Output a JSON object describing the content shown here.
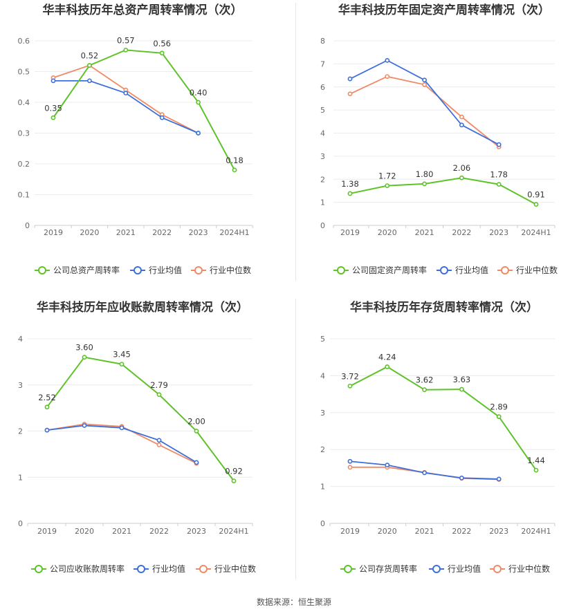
{
  "colors": {
    "company": "#5ec229",
    "avg": "#3d6fd9",
    "median": "#f08a64"
  },
  "source": "数据来源：恒生聚源",
  "chart_data": [
    {
      "type": "line",
      "title": "华丰科技历年总资产周转率情况（次）",
      "categories": [
        "2019",
        "2020",
        "2021",
        "2022",
        "2023",
        "2024H1"
      ],
      "ylim": [
        0,
        0.6
      ],
      "yticks": [
        "0",
        "0.1",
        "0.2",
        "0.3",
        "0.4",
        "0.5",
        "0.6"
      ],
      "series": [
        {
          "name": "公司总资产周转率",
          "values": [
            0.35,
            0.52,
            0.57,
            0.56,
            0.4,
            0.18
          ],
          "labels": [
            "0.35",
            "0.52",
            "0.57",
            "0.56",
            "0.40",
            "0.18"
          ]
        },
        {
          "name": "行业均值",
          "values": [
            0.47,
            0.47,
            0.43,
            0.35,
            0.3,
            null
          ]
        },
        {
          "name": "行业中位数",
          "values": [
            0.48,
            0.52,
            0.44,
            0.36,
            0.3,
            null
          ]
        }
      ]
    },
    {
      "type": "line",
      "title": "华丰科技历年固定资产周转率情况（次）",
      "categories": [
        "2019",
        "2020",
        "2021",
        "2022",
        "2023",
        "2024H1"
      ],
      "ylim": [
        0,
        8
      ],
      "yticks": [
        "0",
        "1",
        "2",
        "3",
        "4",
        "5",
        "6",
        "7",
        "8"
      ],
      "series": [
        {
          "name": "公司固定资产周转率",
          "values": [
            1.38,
            1.72,
            1.8,
            2.06,
            1.78,
            0.91
          ],
          "labels": [
            "1.38",
            "1.72",
            "1.80",
            "2.06",
            "1.78",
            "0.91"
          ]
        },
        {
          "name": "行业均值",
          "values": [
            6.35,
            7.15,
            6.3,
            4.35,
            3.5,
            null
          ]
        },
        {
          "name": "行业中位数",
          "values": [
            5.7,
            6.45,
            6.1,
            4.7,
            3.4,
            null
          ]
        }
      ]
    },
    {
      "type": "line",
      "title": "华丰科技历年应收账款周转率情况（次）",
      "categories": [
        "2019",
        "2020",
        "2021",
        "2022",
        "2023",
        "2024H1"
      ],
      "ylim": [
        0,
        4
      ],
      "yticks": [
        "0",
        "1",
        "2",
        "3",
        "4"
      ],
      "series": [
        {
          "name": "公司应收账款周转率",
          "values": [
            2.52,
            3.6,
            3.45,
            2.79,
            2.0,
            0.92
          ],
          "labels": [
            "2.52",
            "3.60",
            "3.45",
            "2.79",
            "2.00",
            "0.92"
          ]
        },
        {
          "name": "行业均值",
          "values": [
            2.02,
            2.12,
            2.07,
            1.8,
            1.32,
            null
          ]
        },
        {
          "name": "行业中位数",
          "values": [
            2.02,
            2.15,
            2.1,
            1.7,
            1.3,
            null
          ]
        }
      ]
    },
    {
      "type": "line",
      "title": "华丰科技历年存货周转率情况（次）",
      "categories": [
        "2019",
        "2020",
        "2021",
        "2022",
        "2023",
        "2024H1"
      ],
      "ylim": [
        0,
        5
      ],
      "yticks": [
        "0",
        "1",
        "2",
        "3",
        "4",
        "5"
      ],
      "series": [
        {
          "name": "公司存货周转率",
          "values": [
            3.72,
            4.24,
            3.62,
            3.63,
            2.89,
            1.44
          ],
          "labels": [
            "3.72",
            "4.24",
            "3.62",
            "3.63",
            "2.89",
            "1.44"
          ]
        },
        {
          "name": "行业均值",
          "values": [
            1.68,
            1.58,
            1.37,
            1.23,
            1.2,
            null
          ]
        },
        {
          "name": "行业中位数",
          "values": [
            1.52,
            1.52,
            1.38,
            1.22,
            1.19,
            null
          ]
        }
      ]
    }
  ]
}
